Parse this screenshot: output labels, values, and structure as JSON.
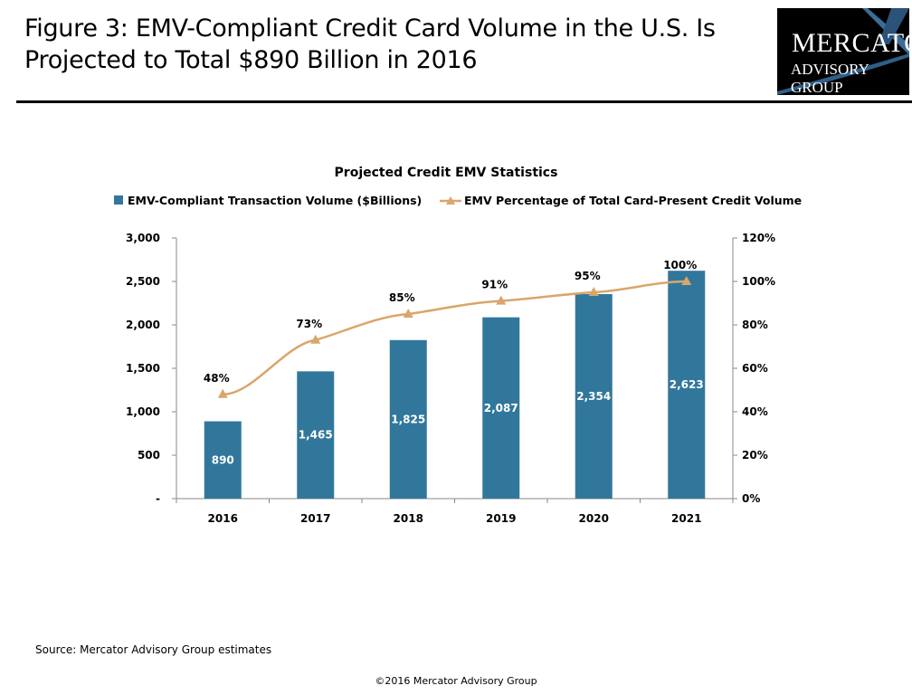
{
  "header": {
    "title": "Figure 3: EMV-Compliant Credit Card Volume in the U.S. Is Projected to Total $890 Billion in 2016",
    "logo_line1": "Mercator",
    "logo_line2": "Advisory Group"
  },
  "chart_data": {
    "type": "bar+line",
    "title": "Projected Credit EMV Statistics",
    "categories": [
      "2016",
      "2017",
      "2018",
      "2019",
      "2020",
      "2021"
    ],
    "series": [
      {
        "name": "EMV-Compliant Transaction Volume ($Billions)",
        "type": "bar",
        "axis": "left",
        "color": "#31779B",
        "values": [
          890,
          1465,
          1825,
          2087,
          2354,
          2623
        ],
        "labels": [
          "890",
          "1,465",
          "1,825",
          "2,087",
          "2,354",
          "2,623"
        ]
      },
      {
        "name": "EMV Percentage of Total Card-Present Credit Volume",
        "type": "line",
        "axis": "right",
        "color": "#D9A66B",
        "marker": "triangle",
        "values": [
          48,
          73,
          85,
          91,
          95,
          100
        ],
        "labels": [
          "48%",
          "73%",
          "85%",
          "91%",
          "95%",
          "100%"
        ]
      }
    ],
    "left_axis": {
      "range": [
        0,
        3000
      ],
      "ticks": [
        "-",
        "500",
        "1,000",
        "1,500",
        "2,000",
        "2,500",
        "3,000"
      ]
    },
    "right_axis": {
      "range": [
        0,
        120
      ],
      "ticks": [
        "0%",
        "20%",
        "40%",
        "60%",
        "80%",
        "100%",
        "120%"
      ]
    },
    "grid": false,
    "legend_position": "top"
  },
  "footer": {
    "source": "Source: Mercator Advisory Group estimates",
    "copyright": "©2016 Mercator Advisory Group"
  }
}
